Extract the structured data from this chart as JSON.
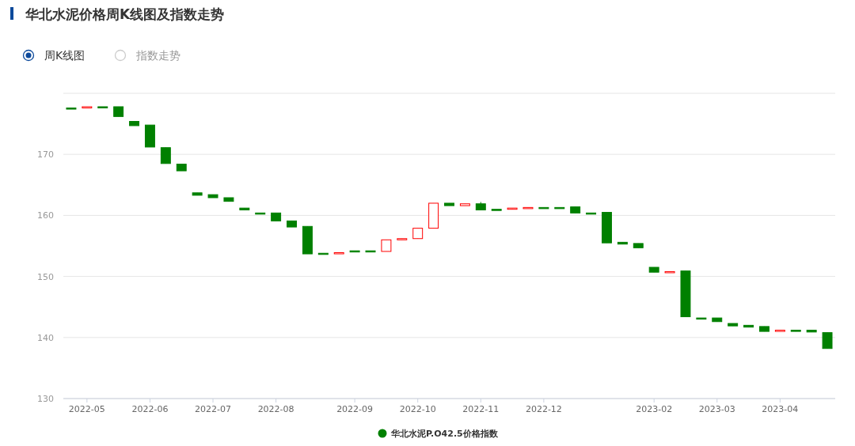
{
  "chart_data": {
    "type": "candlestick",
    "title": "华北水泥价格周K线图及指数走势",
    "annotations": [
      "周K线图",
      "指数走势"
    ],
    "categories": [
      null,
      "2022-05",
      null,
      null,
      null,
      "2022-06",
      null,
      null,
      null,
      "2022-07",
      null,
      null,
      null,
      "2022-08",
      null,
      null,
      null,
      null,
      "2022-09",
      null,
      null,
      null,
      "2022-10",
      null,
      null,
      null,
      "2022-11",
      null,
      null,
      null,
      "2022-12",
      null,
      null,
      null,
      null,
      null,
      null,
      "2023-02",
      null,
      null,
      null,
      "2023-03",
      null,
      null,
      null,
      "2023-04",
      null,
      null,
      null
    ],
    "series": [
      {
        "name": "华北水泥P.O42.5价格指数",
        "color": "#008000",
        "ohlc": [
          [
            177.6,
            177.6,
            177.6,
            177.6
          ],
          [
            177.6,
            177.8,
            177.6,
            177.8
          ],
          [
            177.8,
            177.8,
            177.8,
            177.8
          ],
          [
            177.8,
            177.8,
            176.2,
            176.2
          ],
          [
            175.4,
            175.4,
            174.7,
            174.7
          ],
          [
            174.8,
            174.8,
            171.2,
            171.2
          ],
          [
            171.1,
            171.1,
            168.5,
            168.5
          ],
          [
            168.4,
            168.4,
            167.3,
            167.3
          ],
          [
            163.7,
            163.7,
            163.3,
            163.3
          ],
          [
            163.4,
            163.4,
            162.9,
            162.9
          ],
          [
            162.9,
            162.9,
            162.3,
            162.3
          ],
          [
            161.2,
            161.2,
            160.9,
            160.9
          ],
          [
            160.4,
            160.4,
            160.4,
            160.4
          ],
          [
            160.4,
            160.4,
            159.1,
            159.1
          ],
          [
            159.1,
            159.1,
            158.1,
            158.1
          ],
          [
            158.2,
            158.2,
            153.7,
            153.7
          ],
          [
            153.8,
            153.8,
            153.8,
            153.8
          ],
          [
            153.8,
            153.9,
            153.8,
            153.9
          ],
          [
            154.2,
            154.2,
            154.2,
            154.2
          ],
          [
            154.2,
            154.2,
            154.2,
            154.2
          ],
          [
            154.1,
            156.0,
            154.1,
            156.0
          ],
          [
            156.0,
            156.2,
            156.0,
            156.2
          ],
          [
            156.2,
            157.9,
            156.2,
            157.9
          ],
          [
            157.9,
            162.0,
            157.9,
            162.0
          ],
          [
            162.0,
            162.0,
            161.6,
            161.6
          ],
          [
            161.6,
            161.9,
            161.6,
            161.9
          ],
          [
            161.9,
            162.2,
            160.9,
            160.9
          ],
          [
            161.0,
            161.0,
            161.0,
            161.0
          ],
          [
            161.0,
            161.2,
            161.0,
            161.2
          ],
          [
            161.2,
            161.3,
            161.2,
            161.3
          ],
          [
            161.3,
            161.3,
            161.3,
            161.3
          ],
          [
            161.3,
            161.3,
            161.3,
            161.3
          ],
          [
            161.4,
            161.4,
            160.4,
            160.4
          ],
          [
            160.4,
            160.4,
            160.4,
            160.4
          ],
          [
            160.5,
            160.5,
            155.5,
            155.5
          ],
          [
            155.6,
            155.6,
            155.3,
            155.3
          ],
          [
            155.4,
            155.4,
            154.7,
            154.7
          ],
          [
            151.5,
            151.5,
            150.7,
            150.7
          ],
          [
            150.7,
            150.8,
            150.7,
            150.8
          ],
          [
            150.9,
            150.9,
            143.4,
            143.4
          ],
          [
            143.2,
            143.2,
            143.2,
            143.2
          ],
          [
            143.2,
            143.2,
            142.6,
            142.6
          ],
          [
            142.3,
            142.3,
            141.9,
            141.9
          ],
          [
            142.0,
            142.0,
            141.7,
            141.7
          ],
          [
            141.8,
            141.8,
            141.0,
            141.0
          ],
          [
            141.0,
            141.2,
            141.0,
            141.2
          ],
          [
            141.2,
            141.2,
            141.0,
            141.0
          ],
          [
            141.2,
            141.2,
            140.9,
            140.9
          ],
          [
            140.8,
            140.8,
            138.2,
            138.2
          ]
        ],
        "colors": [
          "#008000",
          "#ff0000",
          "#008000",
          "#008000",
          "#008000",
          "#008000",
          "#008000",
          "#008000",
          "#008000",
          "#008000",
          "#008000",
          "#008000",
          "#008000",
          "#008000",
          "#008000",
          "#008000",
          "#008000",
          "#ff0000",
          "#008000",
          "#008000",
          "#ff0000",
          "#ff0000",
          "#ff0000",
          "#ff0000",
          "#008000",
          "#ff0000",
          "#008000",
          "#008000",
          "#ff0000",
          "#ff0000",
          "#008000",
          "#008000",
          "#008000",
          "#008000",
          "#008000",
          "#008000",
          "#008000",
          "#008000",
          "#ff0000",
          "#008000",
          "#008000",
          "#008000",
          "#008000",
          "#008000",
          "#008000",
          "#ff0000",
          "#008000",
          "#008000",
          "#008000"
        ]
      }
    ],
    "ylim": [
      130,
      180
    ],
    "yticks": [
      130,
      140,
      150,
      160,
      170,
      {
        "value": 180,
        "label": null
      }
    ],
    "grid": "y",
    "legend": "bottom"
  }
}
